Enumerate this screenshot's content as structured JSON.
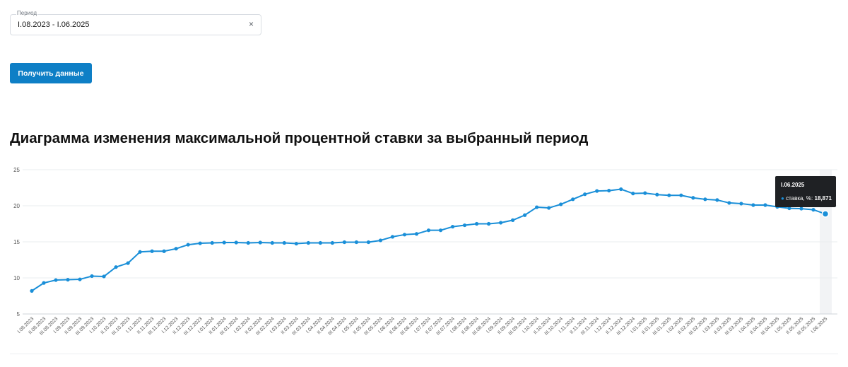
{
  "filter": {
    "period_label": "Период",
    "period_value": "I.08.2023 - I.06.2025",
    "clear_icon": "×"
  },
  "button": {
    "label": "Получить данные"
  },
  "colors": {
    "accent": "#0e7fc6",
    "line": "#1a8fd8",
    "grid": "#e9ecef",
    "tooltip_bg": "#1f2124"
  },
  "chart_data": {
    "type": "line",
    "title": "Диаграмма изменения максимальной процентной ставки за выбранный период",
    "xlabel": "",
    "ylabel": "",
    "ylim": [
      5,
      25
    ],
    "yticks": [
      5,
      10,
      15,
      20,
      25
    ],
    "grid": true,
    "categories": [
      "I.08.2023",
      "II.08.2023",
      "III.08.2023",
      "I.09.2023",
      "II.09.2023",
      "III.09.2023",
      "I.10.2023",
      "II.10.2023",
      "III.10.2023",
      "I.11.2023",
      "II.11.2023",
      "III.11.2023",
      "I.12.2023",
      "II.12.2023",
      "III.12.2023",
      "I.01.2024",
      "II.01.2024",
      "III.01.2024",
      "I.02.2024",
      "II.02.2024",
      "III.02.2024",
      "I.03.2024",
      "II.03.2024",
      "III.03.2024",
      "I.04.2024",
      "II.04.2024",
      "III.04.2024",
      "I.05.2024",
      "II.05.2024",
      "III.05.2024",
      "I.06.2024",
      "II.06.2024",
      "III.06.2024",
      "I.07.2024",
      "II.07.2024",
      "III.07.2024",
      "I.08.2024",
      "II.08.2024",
      "III.08.2024",
      "I.09.2024",
      "II.09.2024",
      "III.09.2024",
      "I.10.2024",
      "II.10.2024",
      "III.10.2024",
      "I.11.2024",
      "II.11.2024",
      "III.11.2024",
      "I.12.2024",
      "II.12.2024",
      "III.12.2024",
      "I.01.2025",
      "II.01.2025",
      "III.01.2025",
      "I.02.2025",
      "II.02.2025",
      "III.02.2025",
      "I.03.2025",
      "II.03.2025",
      "III.03.2025",
      "I.04.2025",
      "II.04.2025",
      "III.04.2025",
      "I.05.2025",
      "II.05.2025",
      "III.05.2025",
      "I.06.2025"
    ],
    "series": [
      {
        "name": "ставка, %",
        "values": [
          8.2,
          9.3,
          9.7,
          9.75,
          9.8,
          10.25,
          10.2,
          11.5,
          12.05,
          13.6,
          13.7,
          13.7,
          14.05,
          14.6,
          14.8,
          14.85,
          14.9,
          14.9,
          14.85,
          14.9,
          14.85,
          14.85,
          14.75,
          14.85,
          14.85,
          14.85,
          14.95,
          14.95,
          14.95,
          15.2,
          15.7,
          16.0,
          16.1,
          16.6,
          16.6,
          17.1,
          17.3,
          17.5,
          17.5,
          17.65,
          18.0,
          18.7,
          19.8,
          19.7,
          20.2,
          20.9,
          21.6,
          22.05,
          22.1,
          22.3,
          21.7,
          21.75,
          21.55,
          21.45,
          21.45,
          21.1,
          20.9,
          20.8,
          20.4,
          20.3,
          20.1,
          20.1,
          19.85,
          19.65,
          19.6,
          19.45,
          18.871
        ]
      }
    ],
    "highlighted_index": 66,
    "tooltip": {
      "date": "I.06.2025",
      "series_label": "ставка, %:",
      "value": "18,871"
    }
  }
}
